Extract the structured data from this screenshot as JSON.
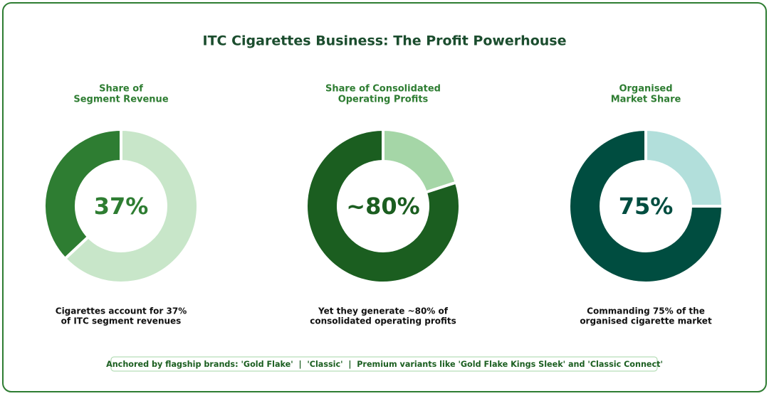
{
  "title": "ITC Cigarettes Business: The Profit Powerhouse",
  "chart_data": [
    {
      "type": "donut",
      "title": [
        "Share of",
        "Segment Revenue"
      ],
      "values": [
        63,
        37
      ],
      "value_labels": [
        null,
        "37%"
      ],
      "colors": [
        "#c8e6c9",
        "#2e7d32"
      ],
      "caption": [
        "Cigarettes account for 37%",
        "of ITC segment revenues"
      ]
    },
    {
      "type": "donut",
      "title": [
        "Share of Consolidated",
        "Operating Profits"
      ],
      "values": [
        20,
        80
      ],
      "value_labels": [
        null,
        "~80%"
      ],
      "colors": [
        "#a5d6a7",
        "#1b5e20"
      ],
      "caption": [
        "Yet they generate ~80% of",
        "consolidated operating profits"
      ]
    },
    {
      "type": "donut",
      "title": [
        "Organised",
        "Market Share"
      ],
      "values": [
        25,
        75
      ],
      "value_labels": [
        null,
        "75%"
      ],
      "colors": [
        "#b2dfdb",
        "#004d40"
      ],
      "caption": [
        "Commanding 75% of the",
        "organised cigarette market"
      ]
    }
  ],
  "footer": "Anchored by flagship brands: 'Gold Flake'  |  'Classic'  |  Premium variants like 'Gold Flake Kings Sleek' and 'Classic Connect'"
}
